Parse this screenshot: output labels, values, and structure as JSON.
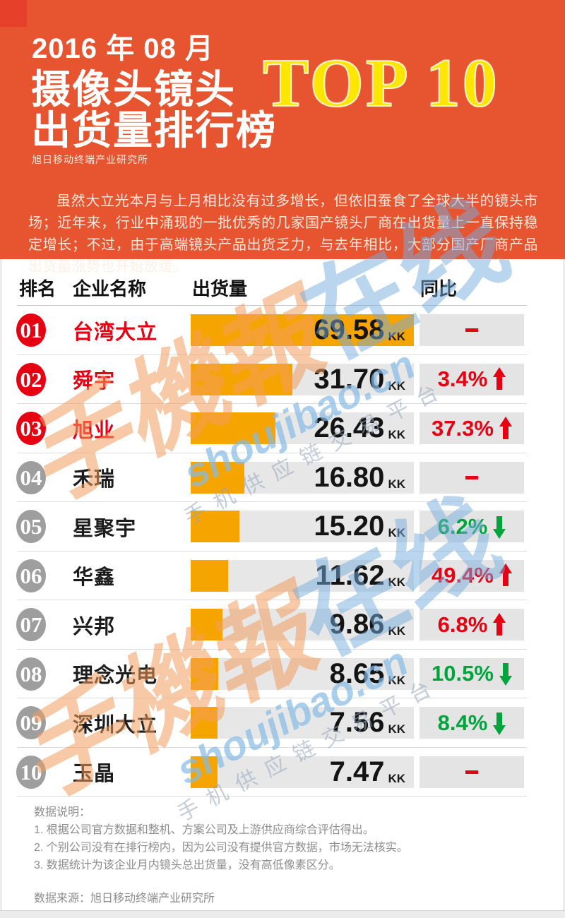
{
  "header": {
    "date": "2016 年 08 月",
    "title_line1": "摄像头镜头",
    "title_line2": "出货量排行榜",
    "top_badge": "TOP 10",
    "org": "旭日移动终端产业研究所",
    "intro": "虽然大立光本月与上月相比没有过多增长，但依旧蚕食了全球大半的镜头市场；近年来，行业中涌现的一批优秀的几家国产镜头厂商在出货量上一直保持稳定增长；不过，由于高端镜头产品出货乏力，与去年相比，大部分国产厂商产品出货量涨势也开始放缓。"
  },
  "table": {
    "columns": [
      "排名",
      "企业名称",
      "出货量",
      "同比"
    ],
    "unit": "KK"
  },
  "rows": [
    {
      "rank": "01",
      "company": "台湾大立",
      "value": "69.58",
      "yoy": "",
      "dir": "flat",
      "highlight": true
    },
    {
      "rank": "02",
      "company": "舜宇",
      "value": "31.70",
      "yoy": "3.4%",
      "dir": "up",
      "highlight": true
    },
    {
      "rank": "03",
      "company": "旭业",
      "value": "26.43",
      "yoy": "37.3%",
      "dir": "up",
      "highlight": true
    },
    {
      "rank": "04",
      "company": "禾瑞",
      "value": "16.80",
      "yoy": "",
      "dir": "flat",
      "highlight": false
    },
    {
      "rank": "05",
      "company": "星聚宇",
      "value": "15.20",
      "yoy": "6.2%",
      "dir": "down",
      "highlight": false
    },
    {
      "rank": "06",
      "company": "华鑫",
      "value": "11.62",
      "yoy": "49.4%",
      "dir": "up",
      "highlight": false
    },
    {
      "rank": "07",
      "company": "兴邦",
      "value": "9.86",
      "yoy": "6.8%",
      "dir": "up",
      "highlight": false
    },
    {
      "rank": "08",
      "company": "理念光电",
      "value": "8.65",
      "yoy": "10.5%",
      "dir": "down",
      "highlight": false
    },
    {
      "rank": "09",
      "company": "深圳大立",
      "value": "7.56",
      "yoy": "8.4%",
      "dir": "down",
      "highlight": false
    },
    {
      "rank": "10",
      "company": "玉晶",
      "value": "7.47",
      "yoy": "",
      "dir": "flat",
      "highlight": false
    }
  ],
  "chart_data": {
    "type": "bar",
    "title": "2016年08月 摄像头镜头出货量排行榜 TOP 10",
    "categories": [
      "台湾大立",
      "舜宇",
      "旭业",
      "禾瑞",
      "星聚宇",
      "华鑫",
      "兴邦",
      "理念光电",
      "深圳大立",
      "玉晶"
    ],
    "values": [
      69.58,
      31.7,
      26.43,
      16.8,
      15.2,
      11.62,
      9.86,
      8.65,
      7.56,
      7.47
    ],
    "unit": "KK",
    "yoy_change": [
      "-",
      "+3.4%",
      "+37.3%",
      "-",
      "-6.2%",
      "+49.4%",
      "+6.8%",
      "-10.5%",
      "-8.4%",
      "-"
    ],
    "xlabel": "出货量",
    "ylabel": "企业名称",
    "xlim": [
      0,
      69.58
    ],
    "legend": "none",
    "grid": false
  },
  "footer": {
    "notes_title": "数据说明：",
    "notes": [
      "1. 根据公司官方数据和整机、方案公司及上游供应商综合评估得出。",
      "2. 个别公司没有在排行榜内，因为公司没有提供官方数据，市场无法核实。",
      "3. 数据统计为该企业月内镜头总出货量，没有高低像素区分。"
    ],
    "source": "数据来源：旭日移动终端产业研究所"
  },
  "watermark": {
    "brand_cn": "手機報",
    "brand_suffix": "在线",
    "domain": "shoujibao.cn",
    "tagline": "手机供应链交易平台"
  },
  "colors": {
    "hero-orange": "#e75430",
    "corner-red": "#e6402a",
    "top10-yellow": "#ffe600",
    "bar-orange": "#f6a400",
    "track-grey": "#e7e7e7",
    "yoy-grey": "#e4e4e4",
    "badge-grey": "#9e9e9e",
    "accent-red": "#e60012",
    "accent-green": "#00a43c"
  }
}
